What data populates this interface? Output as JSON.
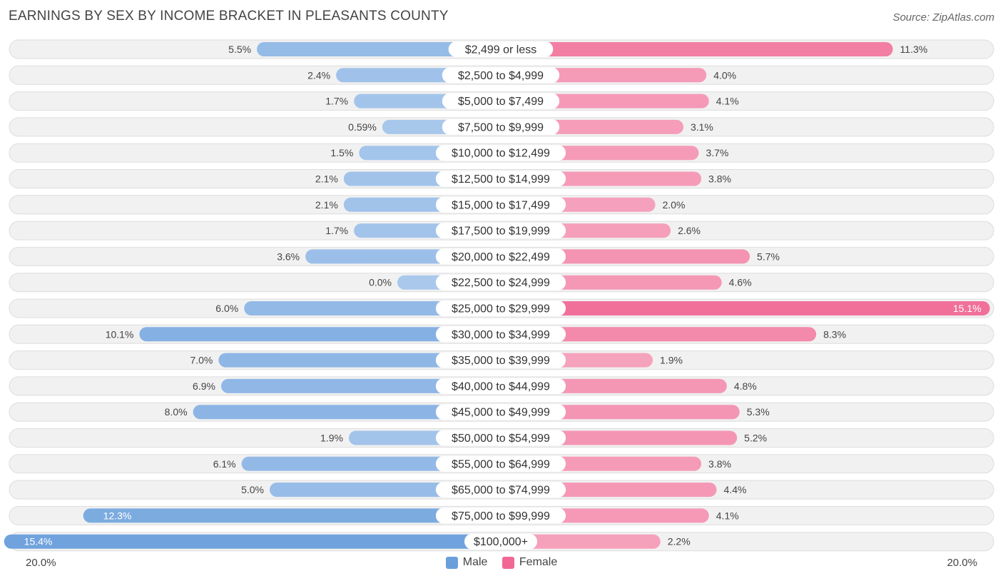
{
  "title": "EARNINGS BY SEX BY INCOME BRACKET IN PLEASANTS COUNTY",
  "source": "Source: ZipAtlas.com",
  "colors": {
    "male_light": "#a9c8ec",
    "male_dark": "#6a9fdc",
    "female_light": "#f6a9c2",
    "female_dark": "#f06893",
    "row_bg": "#f1f1f1",
    "row_border": "#dddddd"
  },
  "chart_data": {
    "type": "bar",
    "orientation": "horizontal-diverging",
    "title": "EARNINGS BY SEX BY INCOME BRACKET IN PLEASANTS COUNTY",
    "xlim": [
      -20,
      20
    ],
    "axis_left_label": "20.0%",
    "axis_right_label": "20.0%",
    "legend": [
      "Male",
      "Female"
    ],
    "categories": [
      "$2,499 or less",
      "$2,500 to $4,999",
      "$5,000 to $7,499",
      "$7,500 to $9,999",
      "$10,000 to $12,499",
      "$12,500 to $14,999",
      "$15,000 to $17,499",
      "$17,500 to $19,999",
      "$20,000 to $22,499",
      "$22,500 to $24,999",
      "$25,000 to $29,999",
      "$30,000 to $34,999",
      "$35,000 to $39,999",
      "$40,000 to $44,999",
      "$45,000 to $49,999",
      "$50,000 to $54,999",
      "$55,000 to $64,999",
      "$65,000 to $74,999",
      "$75,000 to $99,999",
      "$100,000+"
    ],
    "series": [
      {
        "name": "Male",
        "values": [
          5.5,
          2.4,
          1.7,
          0.59,
          1.5,
          2.1,
          2.1,
          1.7,
          3.6,
          0.0,
          6.0,
          10.1,
          7.0,
          6.9,
          8.0,
          1.9,
          6.1,
          5.0,
          12.3,
          15.4
        ],
        "labels": [
          "5.5%",
          "2.4%",
          "1.7%",
          "0.59%",
          "1.5%",
          "2.1%",
          "2.1%",
          "1.7%",
          "3.6%",
          "0.0%",
          "6.0%",
          "10.1%",
          "7.0%",
          "6.9%",
          "8.0%",
          "1.9%",
          "6.1%",
          "5.0%",
          "12.3%",
          "15.4%"
        ]
      },
      {
        "name": "Female",
        "values": [
          11.3,
          4.0,
          4.1,
          3.1,
          3.7,
          3.8,
          2.0,
          2.6,
          5.7,
          4.6,
          15.1,
          8.3,
          1.9,
          4.8,
          5.3,
          5.2,
          3.8,
          4.4,
          4.1,
          2.2
        ],
        "labels": [
          "11.3%",
          "4.0%",
          "4.1%",
          "3.1%",
          "3.7%",
          "3.8%",
          "2.0%",
          "2.6%",
          "5.7%",
          "4.6%",
          "15.1%",
          "8.3%",
          "1.9%",
          "4.8%",
          "5.3%",
          "5.2%",
          "3.8%",
          "4.4%",
          "4.1%",
          "2.2%"
        ]
      }
    ]
  }
}
